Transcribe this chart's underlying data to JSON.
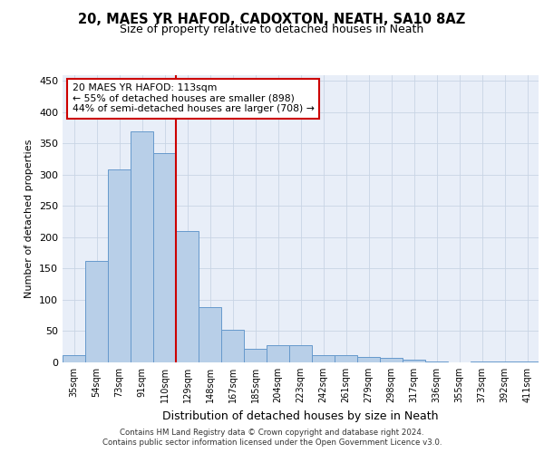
{
  "title1": "20, MAES YR HAFOD, CADOXTON, NEATH, SA10 8AZ",
  "title2": "Size of property relative to detached houses in Neath",
  "xlabel": "Distribution of detached houses by size in Neath",
  "ylabel": "Number of detached properties",
  "categories": [
    "35sqm",
    "54sqm",
    "73sqm",
    "91sqm",
    "110sqm",
    "129sqm",
    "148sqm",
    "167sqm",
    "185sqm",
    "204sqm",
    "223sqm",
    "242sqm",
    "261sqm",
    "279sqm",
    "298sqm",
    "317sqm",
    "336sqm",
    "355sqm",
    "373sqm",
    "392sqm",
    "411sqm"
  ],
  "values": [
    12,
    162,
    308,
    370,
    335,
    210,
    88,
    52,
    22,
    27,
    27,
    11,
    11,
    9,
    7,
    5,
    2,
    0,
    2,
    2,
    2
  ],
  "bar_color": "#b8cfe8",
  "bar_edge_color": "#6699cc",
  "vline_color": "#cc0000",
  "annotation_text": "20 MAES YR HAFOD: 113sqm\n← 55% of detached houses are smaller (898)\n44% of semi-detached houses are larger (708) →",
  "annotation_box_color": "#ffffff",
  "annotation_box_edge": "#cc0000",
  "ylim": [
    0,
    460
  ],
  "yticks": [
    0,
    50,
    100,
    150,
    200,
    250,
    300,
    350,
    400,
    450
  ],
  "footer1": "Contains HM Land Registry data © Crown copyright and database right 2024.",
  "footer2": "Contains public sector information licensed under the Open Government Licence v3.0.",
  "bg_color": "#ffffff",
  "plot_bg_color": "#e8eef8"
}
